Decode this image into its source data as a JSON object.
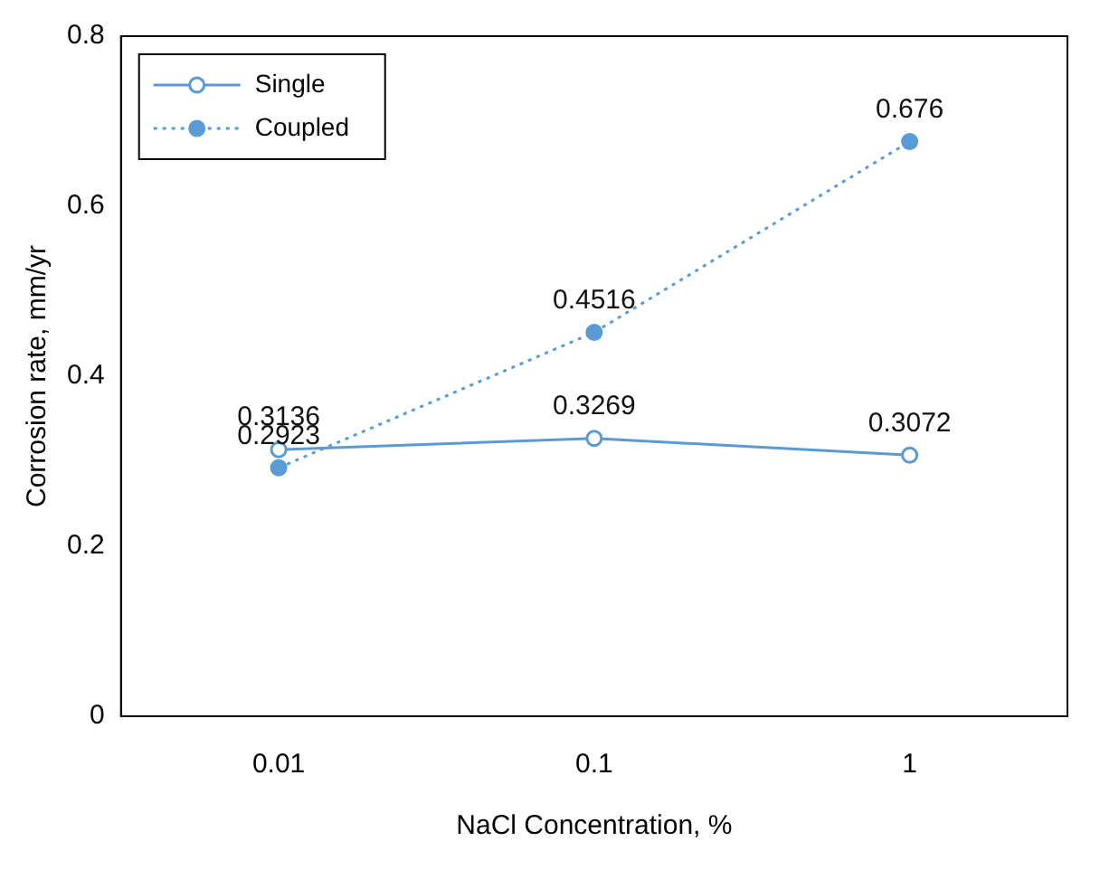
{
  "chart_data": {
    "type": "line",
    "xlabel": "NaCl Concentration, %",
    "ylabel": "Corrosion rate, mm/yr",
    "categories": [
      "0.01",
      "0.1",
      "1"
    ],
    "series": [
      {
        "name": "Single",
        "color": "#5b9bd5",
        "values": [
          0.3136,
          0.3269,
          0.3072
        ],
        "line_style": "solid"
      },
      {
        "name": "Coupled",
        "color": "#5b9bd5",
        "values": [
          0.2923,
          0.4516,
          0.676
        ],
        "line_style": "dotted"
      }
    ],
    "ylim": [
      0,
      0.8
    ],
    "yticks": [
      0,
      0.2,
      0.4,
      0.6,
      0.8
    ],
    "grid": false,
    "legend": "top left",
    "marker": "circle",
    "data_labels": true
  }
}
